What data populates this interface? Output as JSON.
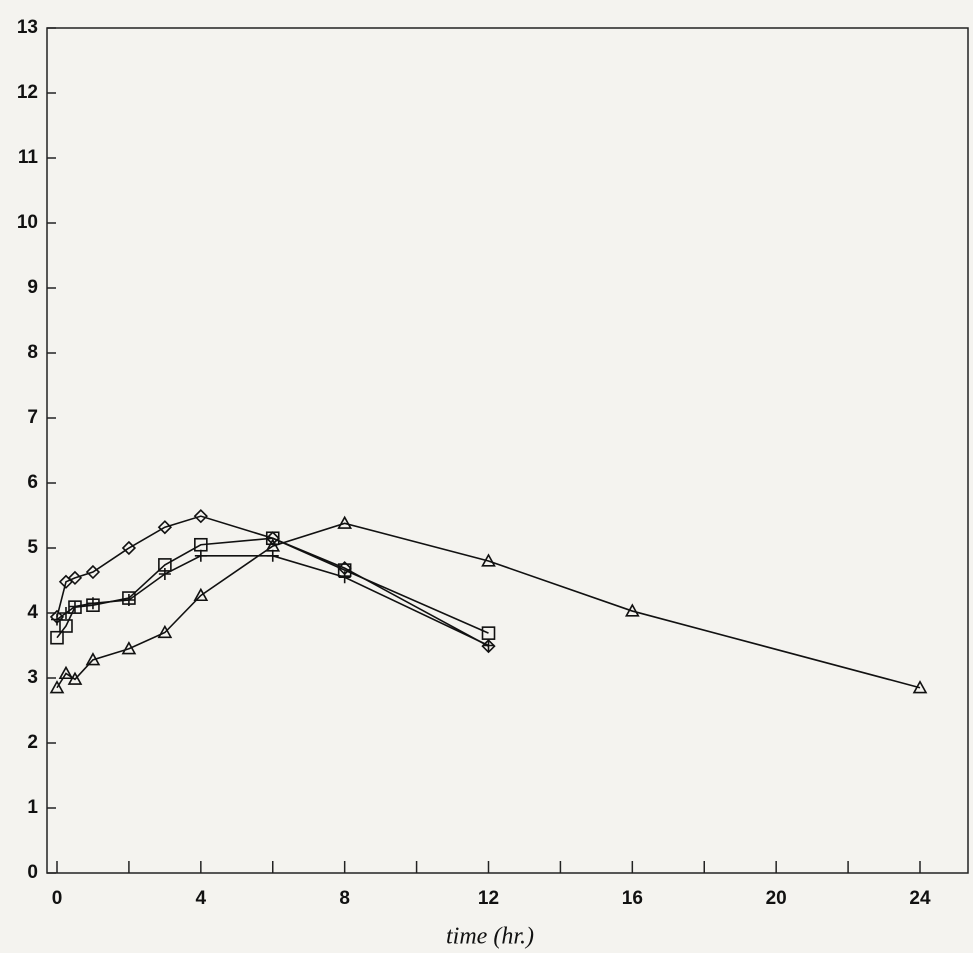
{
  "chart_data": {
    "type": "line",
    "x_label": "time (hr.)",
    "xlim": [
      0,
      24
    ],
    "xticks": [
      0,
      4,
      8,
      12,
      16,
      20,
      24
    ],
    "xminorticks": [
      2,
      6,
      10,
      14,
      18,
      22
    ],
    "ylim": [
      0,
      13
    ],
    "yticks": [
      0,
      1,
      2,
      3,
      4,
      5,
      6,
      7,
      8,
      9,
      10,
      11,
      12,
      13
    ],
    "series": [
      {
        "marker": "diamond",
        "color": "#111111",
        "x": [
          0,
          0.25,
          0.5,
          1,
          2,
          3,
          4,
          6,
          8,
          12
        ],
        "values": [
          3.94,
          4.48,
          4.54,
          4.63,
          5.0,
          5.32,
          5.49,
          5.15,
          4.69,
          3.49
        ]
      },
      {
        "marker": "square",
        "color": "#111111",
        "x": [
          0,
          0.25,
          0.5,
          1,
          2,
          3,
          4,
          6,
          8,
          12
        ],
        "values": [
          3.62,
          3.8,
          4.09,
          4.12,
          4.23,
          4.74,
          5.05,
          5.15,
          4.66,
          3.69
        ]
      },
      {
        "marker": "plus",
        "color": "#111111",
        "x": [
          0,
          0.25,
          0.5,
          1,
          2,
          3,
          4,
          6,
          8,
          12
        ],
        "values": [
          3.9,
          4.0,
          4.1,
          4.15,
          4.2,
          4.6,
          4.88,
          4.88,
          4.55,
          3.5
        ]
      },
      {
        "marker": "triangle",
        "color": "#111111",
        "x": [
          0,
          0.25,
          0.5,
          1,
          2,
          3,
          4,
          6,
          8,
          12,
          16,
          24
        ],
        "values": [
          2.85,
          3.07,
          2.98,
          3.28,
          3.45,
          3.7,
          4.27,
          5.03,
          5.38,
          4.8,
          4.03,
          2.85
        ]
      }
    ]
  }
}
